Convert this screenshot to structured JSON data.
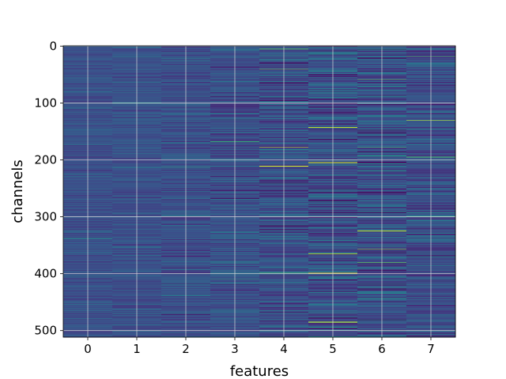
{
  "chart_data": {
    "type": "heatmap",
    "title": "",
    "xlabel": "features",
    "ylabel": "channels",
    "x_ticks": [
      "0",
      "1",
      "2",
      "3",
      "4",
      "5",
      "6",
      "7"
    ],
    "y_ticks": [
      "0",
      "100",
      "200",
      "300",
      "400",
      "500"
    ],
    "y_tick_values": [
      0,
      100,
      200,
      300,
      400,
      500
    ],
    "n_channels": 512,
    "n_features": 8,
    "xlim": [
      -0.5,
      7.5
    ],
    "ylim": [
      511.5,
      -0.5
    ],
    "y_axis_inverted": true,
    "grid": true,
    "colormap": "viridis",
    "colors": {
      "background_median": "#3b518b",
      "grid": "#dcdcdc",
      "bright_line": "#fde725"
    },
    "feature_contrast": [
      0.16,
      0.18,
      0.24,
      0.28,
      0.36,
      0.42,
      0.38,
      0.34
    ],
    "bright_lines": [
      {
        "feature": 4,
        "channel": 5,
        "value": 0.72
      },
      {
        "feature": 4,
        "channel": 40,
        "value": 0.78
      },
      {
        "feature": 4,
        "channel": 178,
        "value": 0.92
      },
      {
        "feature": 4,
        "channel": 211,
        "value": 0.95
      },
      {
        "feature": 4,
        "channel": 398,
        "value": 0.7
      },
      {
        "feature": 5,
        "channel": 143,
        "value": 0.9
      },
      {
        "feature": 5,
        "channel": 205,
        "value": 0.95
      },
      {
        "feature": 5,
        "channel": 365,
        "value": 0.85
      },
      {
        "feature": 5,
        "channel": 399,
        "value": 0.95
      },
      {
        "feature": 5,
        "channel": 485,
        "value": 0.95
      },
      {
        "feature": 6,
        "channel": 58,
        "value": 0.75
      },
      {
        "feature": 6,
        "channel": 325,
        "value": 0.9
      },
      {
        "feature": 6,
        "channel": 357,
        "value": 0.85
      },
      {
        "feature": 6,
        "channel": 380,
        "value": 0.8
      },
      {
        "feature": 6,
        "channel": 178,
        "value": 0.7
      },
      {
        "feature": 7,
        "channel": 18,
        "value": 0.7
      },
      {
        "feature": 7,
        "channel": 131,
        "value": 0.95
      },
      {
        "feature": 7,
        "channel": 195,
        "value": 0.7
      },
      {
        "feature": 7,
        "channel": 300,
        "value": 0.65
      },
      {
        "feature": 3,
        "channel": 168,
        "value": 0.65
      },
      {
        "feature": 3,
        "channel": 410,
        "value": 0.6
      },
      {
        "feature": 2,
        "channel": 212,
        "value": 0.6
      },
      {
        "feature": 1,
        "channel": 100,
        "value": 0.55
      },
      {
        "feature": 0,
        "channel": 338,
        "value": 0.5
      }
    ]
  }
}
